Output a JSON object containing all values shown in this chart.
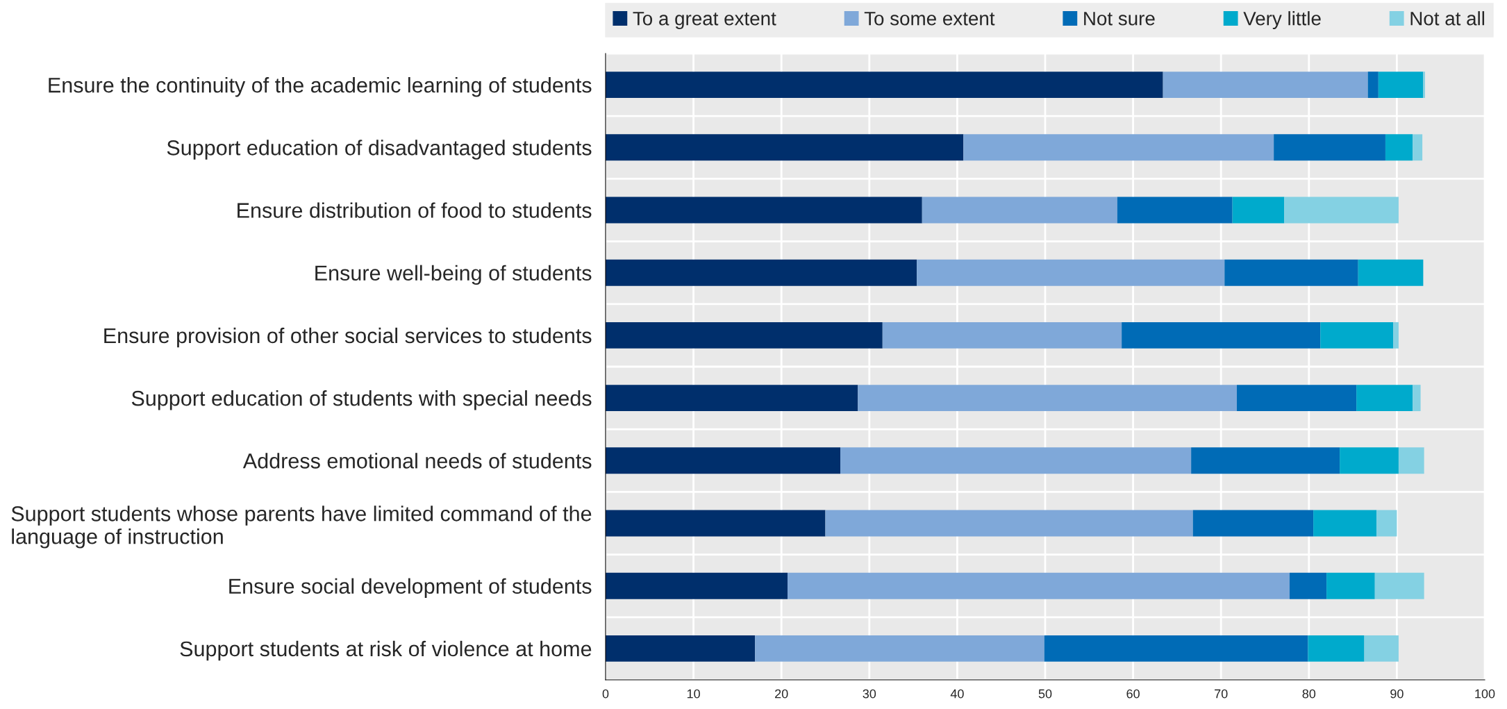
{
  "chart_data": {
    "type": "bar",
    "orientation": "horizontal",
    "stacked": true,
    "categories": [
      "Ensure the continuity of the academic learning of students",
      "Support education of disadvantaged students",
      "Ensure distribution of food to students",
      "Ensure well-being of students",
      "Ensure provision of other social services to students",
      "Support education of students with special needs",
      "Address emotional needs of students",
      "Support students whose parents have limited command of the language of instruction",
      "Ensure social development of students",
      "Support students at risk of violence at home"
    ],
    "series": [
      {
        "name": "To a great extent",
        "color": "#002f6c",
        "values": [
          63.4,
          40.7,
          36.0,
          35.4,
          31.5,
          28.7,
          26.7,
          25.0,
          20.7,
          17.0
        ]
      },
      {
        "name": "To some extent",
        "color": "#7fa8d9",
        "values": [
          23.3,
          35.3,
          22.2,
          35.0,
          27.2,
          43.1,
          39.9,
          41.8,
          57.1,
          32.9
        ]
      },
      {
        "name": "Not sure",
        "color": "#006bb6",
        "values": [
          1.2,
          12.7,
          13.1,
          15.2,
          22.6,
          13.6,
          16.9,
          13.7,
          4.2,
          30.0
        ]
      },
      {
        "name": "Very little",
        "color": "#00aacc",
        "values": [
          5.1,
          3.1,
          5.9,
          7.4,
          8.3,
          6.4,
          6.7,
          7.2,
          5.5,
          6.4
        ]
      },
      {
        "name": "Not at all",
        "color": "#84d1e3",
        "values": [
          0.2,
          1.1,
          13.0,
          0,
          0.6,
          0.9,
          2.9,
          2.3,
          5.6,
          3.9
        ]
      }
    ],
    "xlim": [
      0,
      100
    ],
    "xticks": [
      0,
      10,
      20,
      30,
      40,
      50,
      60,
      70,
      80,
      90,
      100
    ],
    "grid": true,
    "legend": "top"
  }
}
